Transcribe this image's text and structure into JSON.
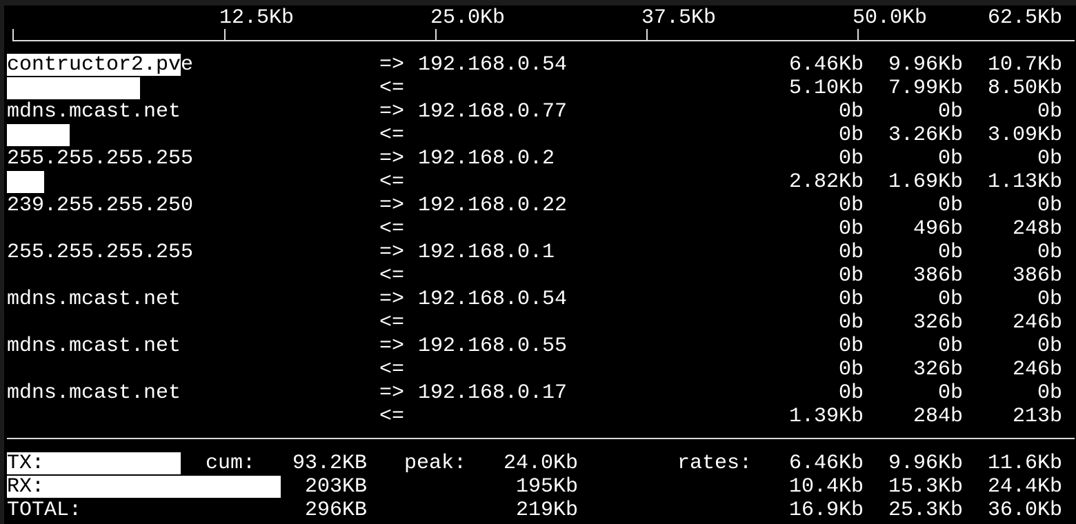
{
  "scale": {
    "unit": "Kb",
    "max": 62.5,
    "ticks": [
      "12.5Kb",
      "25.0Kb",
      "37.5Kb",
      "50.0Kb",
      "62.5Kb"
    ]
  },
  "flows": [
    {
      "host": "contructor2.pve",
      "dir_out": "=>",
      "dir_in": "<=",
      "peer": "192.168.0.54",
      "out": [
        "6.46Kb",
        "9.96Kb",
        "10.7Kb"
      ],
      "in": [
        "5.10Kb",
        "7.99Kb",
        "8.50Kb"
      ],
      "bar_out_kb": 10.3,
      "bar_in_kb": 7.9
    },
    {
      "host": "mdns.mcast.net",
      "dir_out": "=>",
      "dir_in": "<=",
      "peer": "192.168.0.77",
      "out": [
        "0b",
        "0b",
        "0b"
      ],
      "in": [
        "0b",
        "3.26Kb",
        "3.09Kb"
      ],
      "bar_out_kb": 0,
      "bar_in_kb": 3.7
    },
    {
      "host": "255.255.255.255",
      "dir_out": "=>",
      "dir_in": "<=",
      "peer": "192.168.0.2",
      "out": [
        "0b",
        "0b",
        "0b"
      ],
      "in": [
        "2.82Kb",
        "1.69Kb",
        "1.13Kb"
      ],
      "bar_out_kb": 0,
      "bar_in_kb": 2.2
    },
    {
      "host": "239.255.255.250",
      "dir_out": "=>",
      "dir_in": "<=",
      "peer": "192.168.0.22",
      "out": [
        "0b",
        "0b",
        "0b"
      ],
      "in": [
        "0b",
        "496b",
        "248b"
      ],
      "bar_out_kb": 0,
      "bar_in_kb": 0
    },
    {
      "host": "255.255.255.255",
      "dir_out": "=>",
      "dir_in": "<=",
      "peer": "192.168.0.1",
      "out": [
        "0b",
        "0b",
        "0b"
      ],
      "in": [
        "0b",
        "386b",
        "386b"
      ],
      "bar_out_kb": 0,
      "bar_in_kb": 0
    },
    {
      "host": "mdns.mcast.net",
      "dir_out": "=>",
      "dir_in": "<=",
      "peer": "192.168.0.54",
      "out": [
        "0b",
        "0b",
        "0b"
      ],
      "in": [
        "0b",
        "326b",
        "246b"
      ],
      "bar_out_kb": 0,
      "bar_in_kb": 0
    },
    {
      "host": "mdns.mcast.net",
      "dir_out": "=>",
      "dir_in": "<=",
      "peer": "192.168.0.55",
      "out": [
        "0b",
        "0b",
        "0b"
      ],
      "in": [
        "0b",
        "326b",
        "246b"
      ],
      "bar_out_kb": 0,
      "bar_in_kb": 0
    },
    {
      "host": "mdns.mcast.net",
      "dir_out": "=>",
      "dir_in": "<=",
      "peer": "192.168.0.17",
      "out": [
        "0b",
        "0b",
        "0b"
      ],
      "in": [
        "1.39Kb",
        "284b",
        "213b"
      ],
      "bar_out_kb": 0,
      "bar_in_kb": 0
    }
  ],
  "totals": {
    "cum_label": "cum:",
    "peak_label": "peak:",
    "rates_label": "rates:",
    "rows": [
      {
        "label": "TX:",
        "cum": "93.2KB",
        "peak": "24.0Kb",
        "rates": [
          "6.46Kb",
          "9.96Kb",
          "11.6Kb"
        ],
        "bar_kb": 10.3
      },
      {
        "label": "RX:",
        "cum": "203KB",
        "peak": "195Kb",
        "rates": [
          "10.4Kb",
          "15.3Kb",
          "24.4Kb"
        ],
        "bar_kb": 16.2
      },
      {
        "label": "TOTAL:",
        "cum": "296KB",
        "peak": "219Kb",
        "rates": [
          "16.9Kb",
          "25.3Kb",
          "36.0Kb"
        ],
        "bar_kb": 0
      }
    ]
  }
}
